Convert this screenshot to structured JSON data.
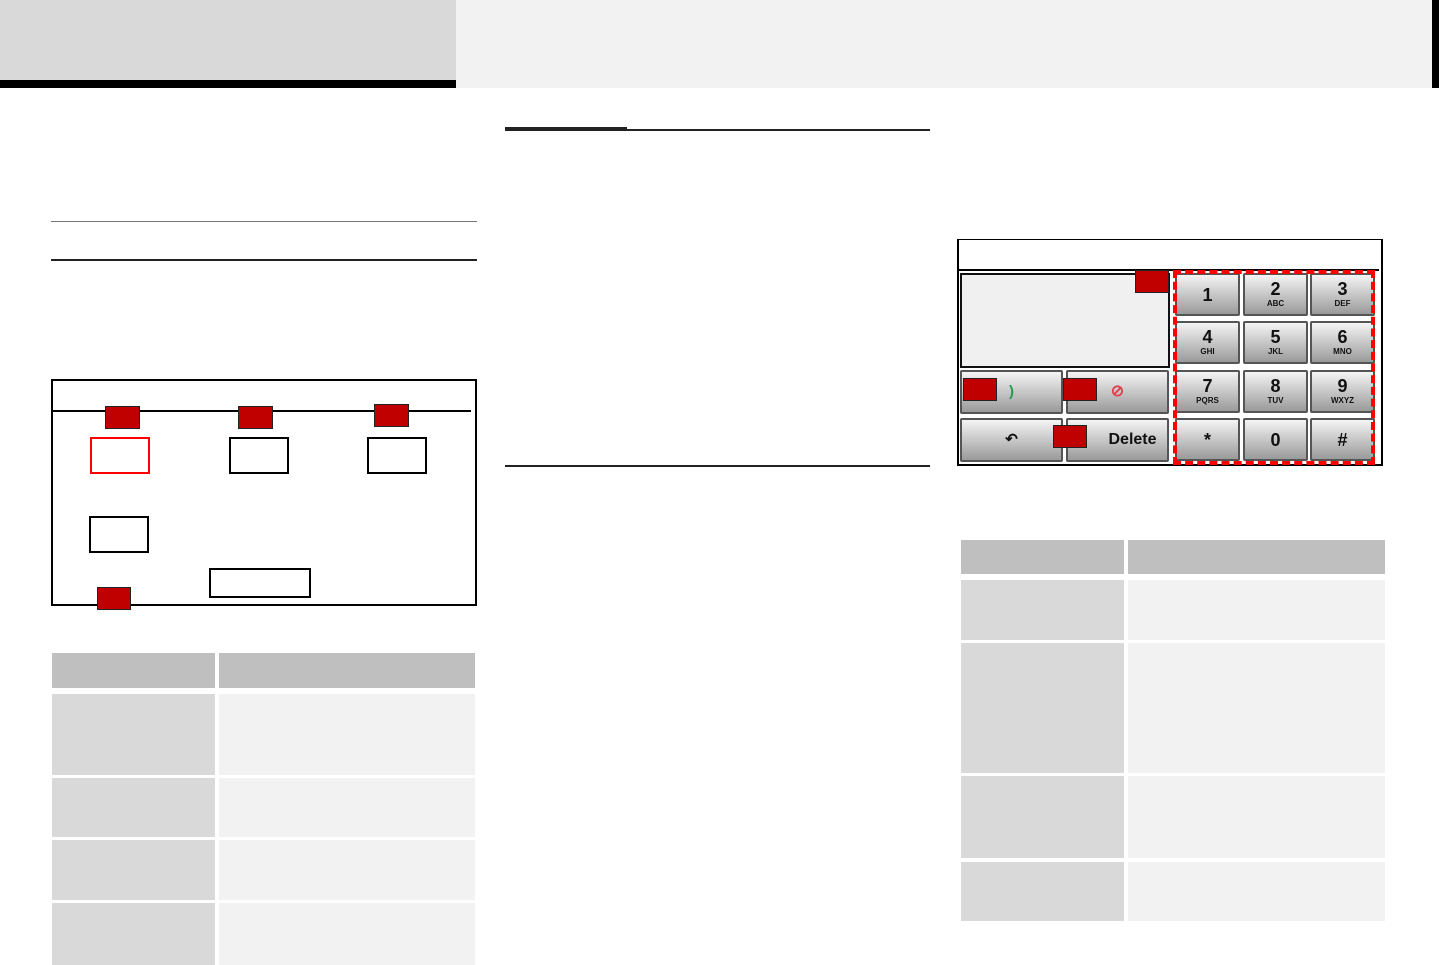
{
  "keypad": {
    "keys": [
      {
        "digit": "1",
        "letters": ""
      },
      {
        "digit": "2",
        "letters": "ABC"
      },
      {
        "digit": "3",
        "letters": "DEF"
      },
      {
        "digit": "4",
        "letters": "GHI"
      },
      {
        "digit": "5",
        "letters": "JKL"
      },
      {
        "digit": "6",
        "letters": "MNO"
      },
      {
        "digit": "7",
        "letters": "PQRS"
      },
      {
        "digit": "8",
        "letters": "TUV"
      },
      {
        "digit": "9",
        "letters": "WXYZ"
      },
      {
        "digit": "*",
        "letters": ""
      },
      {
        "digit": "0",
        "letters": ""
      },
      {
        "digit": "#",
        "letters": ""
      }
    ],
    "delete_label": "Delete",
    "call_icon": "phone-icon",
    "end_icon": "no-entry-icon",
    "back_icon": "back-arrow-icon"
  },
  "colors": {
    "marker": "#c00000",
    "highlight": "#ff0000"
  }
}
